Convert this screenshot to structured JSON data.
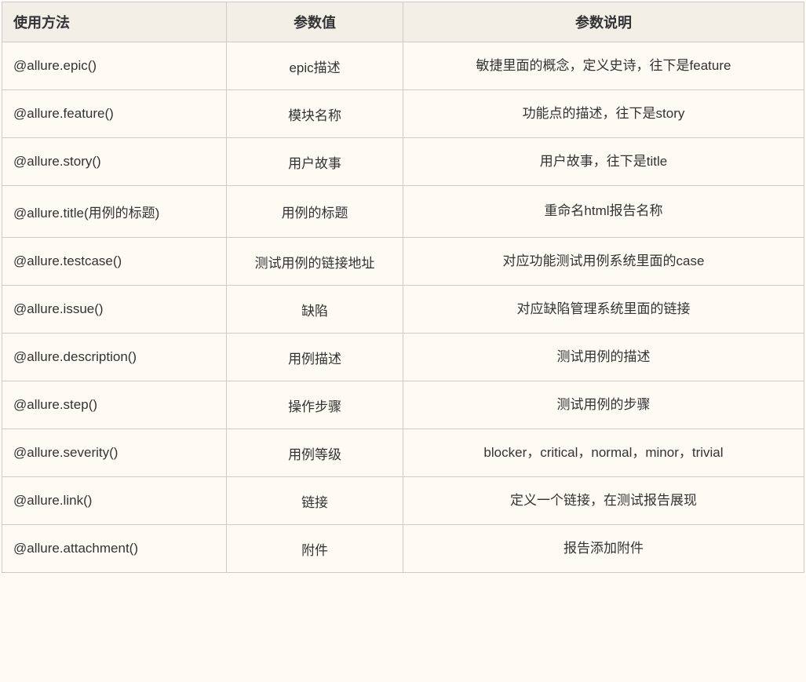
{
  "table": {
    "columns": [
      {
        "label": "使用方法",
        "align": "left"
      },
      {
        "label": "参数值",
        "align": "center"
      },
      {
        "label": "参数说明",
        "align": "center"
      }
    ],
    "column_widths_pct": [
      28,
      22,
      50
    ],
    "header_bg": "#f2efe6",
    "body_bg": "#fdfbf3",
    "border_color": "#cccccc",
    "text_color": "#333333",
    "header_fontsize": 18,
    "body_fontsize": 17,
    "rows": [
      {
        "method": "@allure.epic()",
        "param": "epic描述",
        "desc": "敏捷里面的概念，定义史诗，往下是feature"
      },
      {
        "method": "@allure.feature()",
        "param": "模块名称",
        "desc": "功能点的描述，往下是story"
      },
      {
        "method": "@allure.story()",
        "param": "用户故事",
        "desc": "用户故事，往下是title"
      },
      {
        "method": "@allure.title(用例的标题)",
        "param": "用例的标题",
        "desc": "重命名html报告名称"
      },
      {
        "method": "@allure.testcase()",
        "param": "测试用例的链接地址",
        "desc": "对应功能测试用例系统里面的case"
      },
      {
        "method": "@allure.issue()",
        "param": "缺陷",
        "desc": "对应缺陷管理系统里面的链接"
      },
      {
        "method": "@allure.description()",
        "param": "用例描述",
        "desc": "测试用例的描述"
      },
      {
        "method": "@allure.step()",
        "param": "操作步骤",
        "desc": "测试用例的步骤"
      },
      {
        "method": "@allure.severity()",
        "param": "用例等级",
        "desc": "blocker，critical，normal，minor，trivial"
      },
      {
        "method": "@allure.link()",
        "param": "链接",
        "desc": "定义一个链接，在测试报告展现"
      },
      {
        "method": "@allure.attachment()",
        "param": "附件",
        "desc": "报告添加附件"
      }
    ]
  }
}
